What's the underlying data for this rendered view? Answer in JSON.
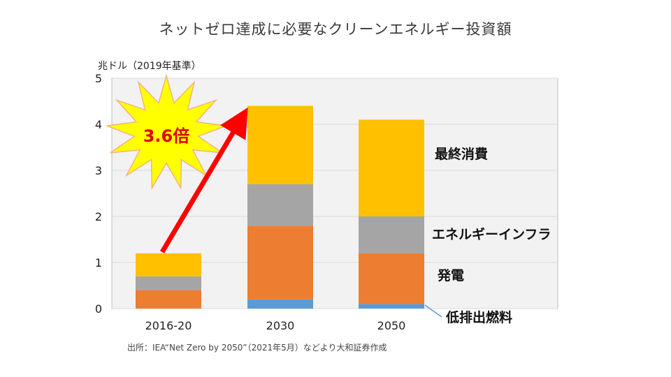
{
  "title": "ネットゼロ達成に必要なクリーンエネルギー投資額",
  "unit_label": "兆ドル（2019年基準）",
  "source": "出所：IEA“Net Zero by 2050”（2021年5月）などより大和証券作成",
  "callout": "3.6倍",
  "colors": {
    "final_consumption": "#ffc000",
    "energy_infra": "#a5a5a5",
    "power": "#ed7d31",
    "low_emission_fuel": "#5b9bd5",
    "plot_bg": "#f2f2f2",
    "arrow": "#ff0000",
    "burst_fill": "#ffff00",
    "burst_stroke": "#f4b183"
  },
  "chart_data": {
    "type": "bar",
    "stacked": true,
    "categories": [
      "2016-20",
      "2030",
      "2050"
    ],
    "series": [
      {
        "name": "低排出燃料",
        "values": [
          0.0,
          0.2,
          0.1
        ]
      },
      {
        "name": "発電",
        "values": [
          0.4,
          1.6,
          1.1
        ]
      },
      {
        "name": "エネルギーインフラ",
        "values": [
          0.3,
          0.9,
          0.8
        ]
      },
      {
        "name": "最終消費",
        "values": [
          0.5,
          1.7,
          2.1
        ]
      }
    ],
    "ylim": [
      0,
      5
    ],
    "yticks": [
      "0",
      "1",
      "2",
      "3",
      "4",
      "5"
    ],
    "grid": true,
    "legend": "right (labels beside 2050 bar)"
  }
}
